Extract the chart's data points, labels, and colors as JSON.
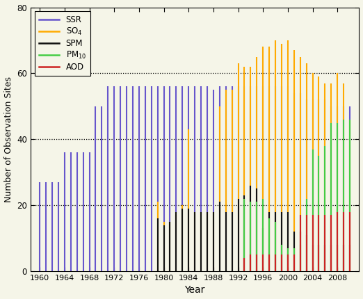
{
  "title": "",
  "xlabel": "Year",
  "ylabel": "Number of Observation Sites",
  "ylim": [
    0,
    80
  ],
  "yticks": [
    0,
    20,
    40,
    60,
    80
  ],
  "hlines": [
    20,
    40,
    60
  ],
  "figsize": [
    5.22,
    4.3
  ],
  "dpi": 100,
  "bg_color": "#f5f5e8",
  "colors": {
    "SSR": "#6655cc",
    "SO4": "#ffaa00",
    "SPM": "#111111",
    "PM10": "#44cc44",
    "AOD": "#cc2222"
  },
  "SSR": {
    "1960": 27,
    "1961": 27,
    "1962": 27,
    "1963": 27,
    "1964": 36,
    "1965": 36,
    "1966": 36,
    "1967": 36,
    "1968": 36,
    "1969": 50,
    "1970": 50,
    "1971": 56,
    "1972": 56,
    "1973": 56,
    "1974": 56,
    "1975": 56,
    "1976": 56,
    "1977": 56,
    "1978": 56,
    "1979": 56,
    "1980": 56,
    "1981": 56,
    "1982": 56,
    "1983": 56,
    "1984": 56,
    "1985": 56,
    "1986": 56,
    "1987": 56,
    "1988": 55,
    "1989": 56,
    "1990": 56,
    "1991": 56,
    "1992": 56,
    "1993": 56,
    "1994": 56,
    "1995": 56,
    "1996": 56,
    "1997": 56,
    "1998": 56,
    "1999": 56,
    "2000": 56,
    "2001": 54,
    "2002": 54,
    "2003": 52,
    "2004": 52,
    "2005": 52,
    "2006": 52,
    "2007": 50,
    "2008": 50,
    "2009": 50,
    "2010": 50
  },
  "SO4": {
    "1979": 21,
    "1980": 15,
    "1981": 15,
    "1982": 17,
    "1983": 20,
    "1984": 43,
    "1985": 18,
    "1986": 18,
    "1987": 18,
    "1988": 18,
    "1989": 50,
    "1990": 55,
    "1991": 55,
    "1992": 63,
    "1993": 62,
    "1994": 62,
    "1995": 65,
    "1996": 68,
    "1997": 68,
    "1998": 70,
    "1999": 69,
    "2000": 70,
    "2001": 67,
    "2002": 65,
    "2003": 63,
    "2004": 60,
    "2005": 59,
    "2006": 57,
    "2007": 57,
    "2008": 60,
    "2009": 57,
    "2010": 46
  },
  "SPM": {
    "1979": 16,
    "1980": 14,
    "1981": 15,
    "1982": 18,
    "1983": 19,
    "1984": 19,
    "1985": 18,
    "1986": 18,
    "1987": 18,
    "1988": 18,
    "1989": 21,
    "1990": 18,
    "1991": 18,
    "1992": 22,
    "1993": 23,
    "1994": 26,
    "1995": 25,
    "1996": 13,
    "1997": 18,
    "1998": 18,
    "1999": 18,
    "2000": 18,
    "2001": 12,
    "2002": 12,
    "2003": 11,
    "2004": 8,
    "2005": 8,
    "2006": 8,
    "2007": 8,
    "2008": 8,
    "2009": 8,
    "2010": 8
  },
  "PM10": {
    "1993": 22,
    "1994": 21,
    "1995": 21,
    "1996": 22,
    "1997": 16,
    "1998": 15,
    "1999": 8,
    "2000": 7,
    "2001": 7,
    "2002": 8,
    "2003": 22,
    "2004": 37,
    "2005": 35,
    "2006": 38,
    "2007": 45,
    "2008": 45,
    "2009": 46,
    "2010": 46
  },
  "AOD": {
    "1993": 4,
    "1994": 5,
    "1995": 5,
    "1996": 5,
    "1997": 5,
    "1998": 5,
    "1999": 5,
    "2000": 5,
    "2001": 5,
    "2002": 17,
    "2003": 17,
    "2004": 17,
    "2005": 17,
    "2006": 17,
    "2007": 17,
    "2008": 18,
    "2009": 18,
    "2010": 18
  }
}
